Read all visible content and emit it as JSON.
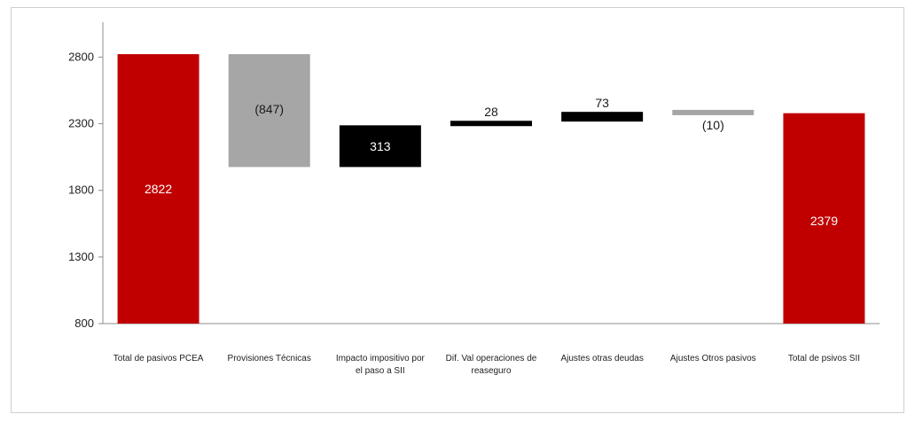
{
  "chart_data": {
    "type": "waterfall",
    "title": "",
    "xlabel": "",
    "ylabel": "",
    "ylim": [
      800,
      3000
    ],
    "yticks": [
      800,
      1300,
      1800,
      2300,
      2800
    ],
    "grid": false,
    "legend": "none",
    "categories": [
      [
        "Total de pasivos PCEA"
      ],
      [
        "Provisiones Técnicas"
      ],
      [
        "Impacto impositivo por",
        "el paso a SII"
      ],
      [
        "Dif. Val operaciones de",
        "reaseguro"
      ],
      [
        "Ajustes otras deudas"
      ],
      [
        "Ajustes Otros pasivos"
      ],
      [
        "Total de psivos SII"
      ]
    ],
    "bars": [
      {
        "kind": "total",
        "start": 800,
        "end": 2822,
        "label": "2822",
        "color": "#c00000",
        "label_color": "#ffffff",
        "label_pos": "inside"
      },
      {
        "kind": "delta",
        "start": 2822,
        "end": 1975,
        "label": "(847)",
        "color": "#a6a6a6",
        "label_color": "#1a1a1a",
        "label_pos": "inside-upper"
      },
      {
        "kind": "delta",
        "start": 1975,
        "end": 2288,
        "label": "313",
        "color": "#000000",
        "label_color": "#ffffff",
        "label_pos": "inside"
      },
      {
        "kind": "delta",
        "start": 2288,
        "end": 2316,
        "label": "28",
        "color": "#000000",
        "label_color": "#1a1a1a",
        "label_pos": "above"
      },
      {
        "kind": "delta",
        "start": 2316,
        "end": 2389,
        "label": "73",
        "color": "#000000",
        "label_color": "#1a1a1a",
        "label_pos": "above"
      },
      {
        "kind": "delta",
        "start": 2389,
        "end": 2379,
        "label": "(10)",
        "color": "#a6a6a6",
        "label_color": "#1a1a1a",
        "label_pos": "below"
      },
      {
        "kind": "total",
        "start": 800,
        "end": 2379,
        "label": "2379",
        "color": "#c00000",
        "label_color": "#ffffff",
        "label_pos": "inside-lower"
      }
    ]
  }
}
